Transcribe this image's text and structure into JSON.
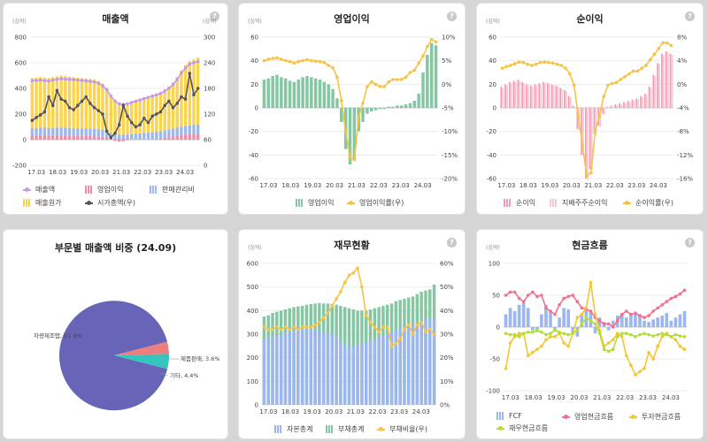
{
  "cards": [
    {
      "title": "매출액",
      "unit_left": "(십억)",
      "unit_right": "(십억)"
    },
    {
      "title": "영업이익",
      "unit_left": "(십억)",
      "unit_right": ""
    },
    {
      "title": "순이익",
      "unit_left": "(십억)",
      "unit_right": ""
    },
    {
      "title": "부문별 매출액 비중 (24.09)",
      "unit_left": "",
      "unit_right": ""
    },
    {
      "title": "재무현황",
      "unit_left": "(십억)",
      "unit_right": ""
    },
    {
      "title": "현금흐름",
      "unit_left": "(십억)",
      "unit_right": ""
    }
  ],
  "help_glyph": "?",
  "colors": {
    "revenue": "#c79ae4",
    "cogs": "#fbd34d",
    "op": "#f38aa6",
    "sga": "#9db8ee",
    "mcap": "#555555",
    "green": "#86c7a3",
    "yellow": "#f6c445",
    "pink": "#f59ab3",
    "lightpink": "#f9c7d4",
    "blue": "#9cb6f0",
    "cfo": "#f2718d",
    "cfi": "#f4c534",
    "cff": "#b5dc3a",
    "pie_main": "#6865b9",
    "pie_red": "#ef7f7f",
    "pie_teal": "#36c4be"
  },
  "chart_data": [
    {
      "type": "bar",
      "title": "매출액",
      "x_ticks": [
        "17.03",
        "18.03",
        "19.03",
        "20.03",
        "21.03",
        "22.03",
        "23.03",
        "24.03"
      ],
      "ylim": [
        -200,
        800
      ],
      "y_ticks": [
        "-200",
        "0",
        "200",
        "400",
        "600",
        "800"
      ],
      "y2lim": [
        0,
        300
      ],
      "y2_ticks": [
        "0",
        "60",
        "120",
        "180",
        "240",
        "300"
      ],
      "series": [
        {
          "name": "매출액",
          "kind": "line",
          "values": [
            460,
            462,
            465,
            460,
            458,
            465,
            470,
            475,
            472,
            470,
            468,
            465,
            462,
            458,
            455,
            450,
            440,
            420,
            390,
            340,
            300,
            280,
            275,
            280,
            290,
            300,
            310,
            320,
            330,
            340,
            350,
            360,
            380,
            400,
            430,
            470,
            520,
            560,
            590,
            600,
            610
          ]
        },
        {
          "name": "영업이익",
          "kind": "bar",
          "values": [
            30,
            30,
            32,
            31,
            30,
            30,
            31,
            32,
            31,
            30,
            29,
            28,
            27,
            28,
            27,
            26,
            25,
            22,
            15,
            5,
            -10,
            -15,
            -12,
            -5,
            0,
            2,
            3,
            4,
            5,
            6,
            8,
            10,
            15,
            20,
            25,
            30,
            35,
            40,
            42,
            45,
            46
          ]
        },
        {
          "name": "판매관리비",
          "kind": "bar",
          "values": [
            60,
            61,
            62,
            62,
            61,
            62,
            63,
            63,
            62,
            62,
            61,
            60,
            60,
            59,
            59,
            58,
            57,
            55,
            50,
            45,
            40,
            38,
            38,
            40,
            42,
            44,
            46,
            48,
            50,
            52,
            54,
            56,
            58,
            60,
            62,
            64,
            66,
            68,
            70,
            72,
            74
          ]
        },
        {
          "name": "매출원가",
          "kind": "bar",
          "values": [
            390,
            392,
            395,
            392,
            390,
            395,
            400,
            405,
            402,
            400,
            398,
            396,
            393,
            390,
            388,
            385,
            375,
            360,
            340,
            300,
            270,
            250,
            245,
            248,
            255,
            262,
            268,
            275,
            282,
            290,
            298,
            305,
            318,
            335,
            360,
            395,
            440,
            475,
            500,
            510,
            520
          ]
        },
        {
          "name": "시가총액(우)",
          "kind": "line",
          "axis": "right",
          "values": [
            105,
            112,
            118,
            125,
            160,
            140,
            175,
            155,
            150,
            135,
            130,
            140,
            150,
            160,
            145,
            135,
            128,
            120,
            80,
            65,
            75,
            95,
            140,
            115,
            100,
            90,
            95,
            110,
            100,
            115,
            120,
            125,
            140,
            150,
            135,
            145,
            160,
            155,
            215,
            165,
            180
          ]
        }
      ]
    },
    {
      "type": "bar",
      "title": "영업이익",
      "x_ticks": [
        "17.03",
        "18.03",
        "19.03",
        "20.03",
        "21.03",
        "22.03",
        "23.03",
        "24.03"
      ],
      "ylim": [
        -60,
        60
      ],
      "y_ticks": [
        "-60",
        "-40",
        "-20",
        "0",
        "20",
        "40",
        "60"
      ],
      "y2lim": [
        -20,
        10
      ],
      "y2_ticks": [
        "-20%",
        "-15%",
        "-10%",
        "-5%",
        "0%",
        "5%",
        "10%"
      ],
      "series": [
        {
          "name": "영업이익",
          "kind": "bar",
          "values": [
            24,
            25,
            27,
            28,
            26,
            25,
            23,
            22,
            24,
            26,
            27,
            26,
            25,
            24,
            22,
            20,
            16,
            8,
            -12,
            -35,
            -48,
            -45,
            -20,
            -12,
            -5,
            -3,
            -2,
            -1,
            -1,
            1,
            1,
            2,
            2,
            3,
            4,
            6,
            12,
            30,
            45,
            55,
            53
          ]
        },
        {
          "name": "영업이익률(우)",
          "kind": "line",
          "axis": "right",
          "values": [
            5.0,
            5.3,
            5.5,
            5.6,
            5.3,
            5.0,
            4.8,
            4.5,
            4.8,
            5.0,
            5.2,
            5.0,
            4.9,
            4.8,
            4.6,
            4.0,
            3.5,
            1.5,
            -3.5,
            -10.0,
            -15.5,
            -16.0,
            -7.0,
            -4.0,
            -0.5,
            0.5,
            0.0,
            -0.5,
            -0.5,
            0.5,
            1.0,
            1.0,
            1.0,
            1.5,
            2.5,
            3.0,
            4.5,
            6.0,
            8.0,
            9.5,
            9.0
          ]
        }
      ]
    },
    {
      "type": "bar",
      "title": "순이익",
      "x_ticks": [
        "17.03",
        "18.03",
        "19.03",
        "20.03",
        "21.03",
        "22.03",
        "23.03",
        "24.03"
      ],
      "ylim": [
        -60,
        60
      ],
      "y_ticks": [
        "-60",
        "-40",
        "-20",
        "0",
        "20",
        "40",
        "60"
      ],
      "y2lim": [
        -16,
        9
      ],
      "y2_ticks": [
        "-16%",
        "-12%",
        "-8%",
        "-4%",
        "0%",
        "4%",
        "8%"
      ],
      "series": [
        {
          "name": "순이익",
          "kind": "bar",
          "values": [
            18,
            20,
            22,
            23,
            24,
            22,
            20,
            19,
            20,
            21,
            22,
            21,
            20,
            19,
            17,
            15,
            10,
            2,
            -18,
            -40,
            -60,
            -52,
            -22,
            -15,
            -5,
            1,
            2,
            3,
            4,
            5,
            6,
            7,
            8,
            10,
            12,
            18,
            28,
            38,
            46,
            48,
            46
          ]
        },
        {
          "name": "지배주주순이익",
          "kind": "bar",
          "values": [
            17,
            19,
            21,
            22,
            23,
            21,
            19,
            18,
            19,
            20,
            21,
            20,
            19,
            18,
            16,
            14,
            9,
            1,
            -19,
            -41,
            -61,
            -53,
            -23,
            -16,
            -6,
            0,
            1,
            2,
            3,
            4,
            5,
            6,
            7,
            9,
            11,
            17,
            27,
            37,
            45,
            47,
            45
          ]
        },
        {
          "name": "순이익률(우)",
          "kind": "line",
          "axis": "right",
          "values": [
            3.5,
            3.8,
            4.0,
            4.3,
            4.6,
            4.5,
            4.2,
            4.0,
            4.2,
            4.5,
            4.6,
            4.5,
            4.4,
            4.2,
            4.0,
            3.5,
            2.5,
            0.5,
            -5.0,
            -10.0,
            -15.5,
            -15.0,
            -7.5,
            -5.0,
            -1.5,
            0.5,
            0.8,
            1.0,
            1.5,
            2.0,
            2.5,
            3.0,
            3.0,
            3.5,
            4.0,
            5.0,
            6.0,
            7.0,
            8.0,
            8.0,
            7.5
          ]
        }
      ]
    },
    {
      "type": "pie",
      "title": "부문별 매출액 비중 (24.09)",
      "slices": [
        {
          "label": "차량제조업, 91.9%",
          "value": 91.9
        },
        {
          "label": "제품판매, 3.6%",
          "value": 3.6
        },
        {
          "label": "기타, 4.4%",
          "value": 4.4
        }
      ]
    },
    {
      "type": "bar",
      "title": "재무현황",
      "x_ticks": [
        "17.03",
        "18.03",
        "19.03",
        "20.03",
        "21.03",
        "22.03",
        "23.03",
        "24.03"
      ],
      "ylim": [
        0,
        600
      ],
      "y_ticks": [
        "0",
        "100",
        "200",
        "300",
        "400",
        "500",
        "600"
      ],
      "y2lim": [
        0,
        60
      ],
      "y2_ticks": [
        "0%",
        "10%",
        "20%",
        "30%",
        "40%",
        "50%",
        "60%"
      ],
      "series": [
        {
          "name": "자본총계",
          "kind": "bar",
          "values": [
            280,
            285,
            290,
            295,
            300,
            305,
            310,
            315,
            318,
            320,
            322,
            322,
            318,
            315,
            310,
            305,
            300,
            290,
            275,
            255,
            245,
            250,
            255,
            260,
            265,
            270,
            278,
            285,
            295,
            300,
            310,
            318,
            325,
            332,
            338,
            345,
            350,
            355,
            360,
            365,
            370
          ]
        },
        {
          "name": "부채총계",
          "kind": "bar",
          "values": [
            375,
            380,
            390,
            395,
            400,
            405,
            410,
            415,
            418,
            420,
            425,
            428,
            430,
            432,
            430,
            430,
            428,
            425,
            420,
            415,
            410,
            405,
            400,
            400,
            400,
            405,
            410,
            415,
            420,
            425,
            430,
            440,
            445,
            450,
            455,
            460,
            470,
            480,
            485,
            490,
            510
          ]
        },
        {
          "name": "부채비율(우)",
          "kind": "line",
          "axis": "right",
          "values": [
            33,
            32,
            32,
            33,
            32,
            33,
            32,
            33,
            32,
            33,
            33,
            33,
            34,
            35,
            37,
            39,
            42,
            45,
            48,
            52,
            55,
            56,
            58,
            50,
            38,
            35,
            33,
            31,
            33,
            33,
            25,
            26,
            28,
            32,
            34,
            30,
            34,
            35,
            31,
            32,
            30
          ]
        }
      ]
    },
    {
      "type": "bar",
      "title": "현금흐름",
      "x_ticks": [
        "17.03",
        "18.03",
        "19.03",
        "20.03",
        "21.03",
        "22.03",
        "23.03",
        "24.03"
      ],
      "ylim": [
        -100,
        100
      ],
      "y_ticks": [
        "-100",
        "-50",
        "0",
        "50",
        "100"
      ],
      "series": [
        {
          "name": "FCF",
          "kind": "bar",
          "values": [
            20,
            30,
            25,
            35,
            38,
            30,
            -5,
            -8,
            20,
            35,
            25,
            -5,
            15,
            30,
            28,
            -10,
            -15,
            20,
            28,
            25,
            -10,
            15,
            8,
            -5,
            10,
            18,
            20,
            15,
            22,
            20,
            18,
            10,
            8,
            12,
            15,
            18,
            22,
            10,
            15,
            20,
            25
          ]
        },
        {
          "name": "영업현금흐름",
          "kind": "line",
          "values": [
            50,
            55,
            55,
            45,
            40,
            50,
            55,
            48,
            50,
            30,
            25,
            20,
            35,
            45,
            48,
            50,
            40,
            30,
            28,
            25,
            15,
            10,
            5,
            5,
            0,
            10,
            20,
            25,
            20,
            22,
            18,
            15,
            18,
            25,
            30,
            35,
            40,
            45,
            48,
            52,
            58
          ]
        },
        {
          "name": "투자현금흐름",
          "kind": "line",
          "values": [
            -65,
            -25,
            -15,
            -10,
            -10,
            -45,
            -40,
            -35,
            -30,
            -20,
            -15,
            -15,
            -10,
            -25,
            -30,
            -10,
            15,
            20,
            30,
            70,
            20,
            -5,
            -30,
            -25,
            -20,
            -10,
            -15,
            -45,
            -60,
            -75,
            -70,
            -65,
            -40,
            -50,
            -30,
            -15,
            -10,
            -15,
            -20,
            -30,
            -35
          ]
        },
        {
          "name": "재무현금흐름",
          "kind": "line",
          "values": [
            -10,
            -12,
            -12,
            -15,
            -10,
            -8,
            -8,
            -5,
            -8,
            -12,
            -10,
            -5,
            -8,
            -10,
            -12,
            -10,
            -5,
            5,
            15,
            10,
            5,
            -10,
            -35,
            -38,
            -35,
            -15,
            -10,
            -10,
            -12,
            -15,
            -12,
            -10,
            -12,
            -14,
            -12,
            -10,
            -12,
            -15,
            -12,
            -14,
            -15
          ]
        }
      ]
    }
  ]
}
